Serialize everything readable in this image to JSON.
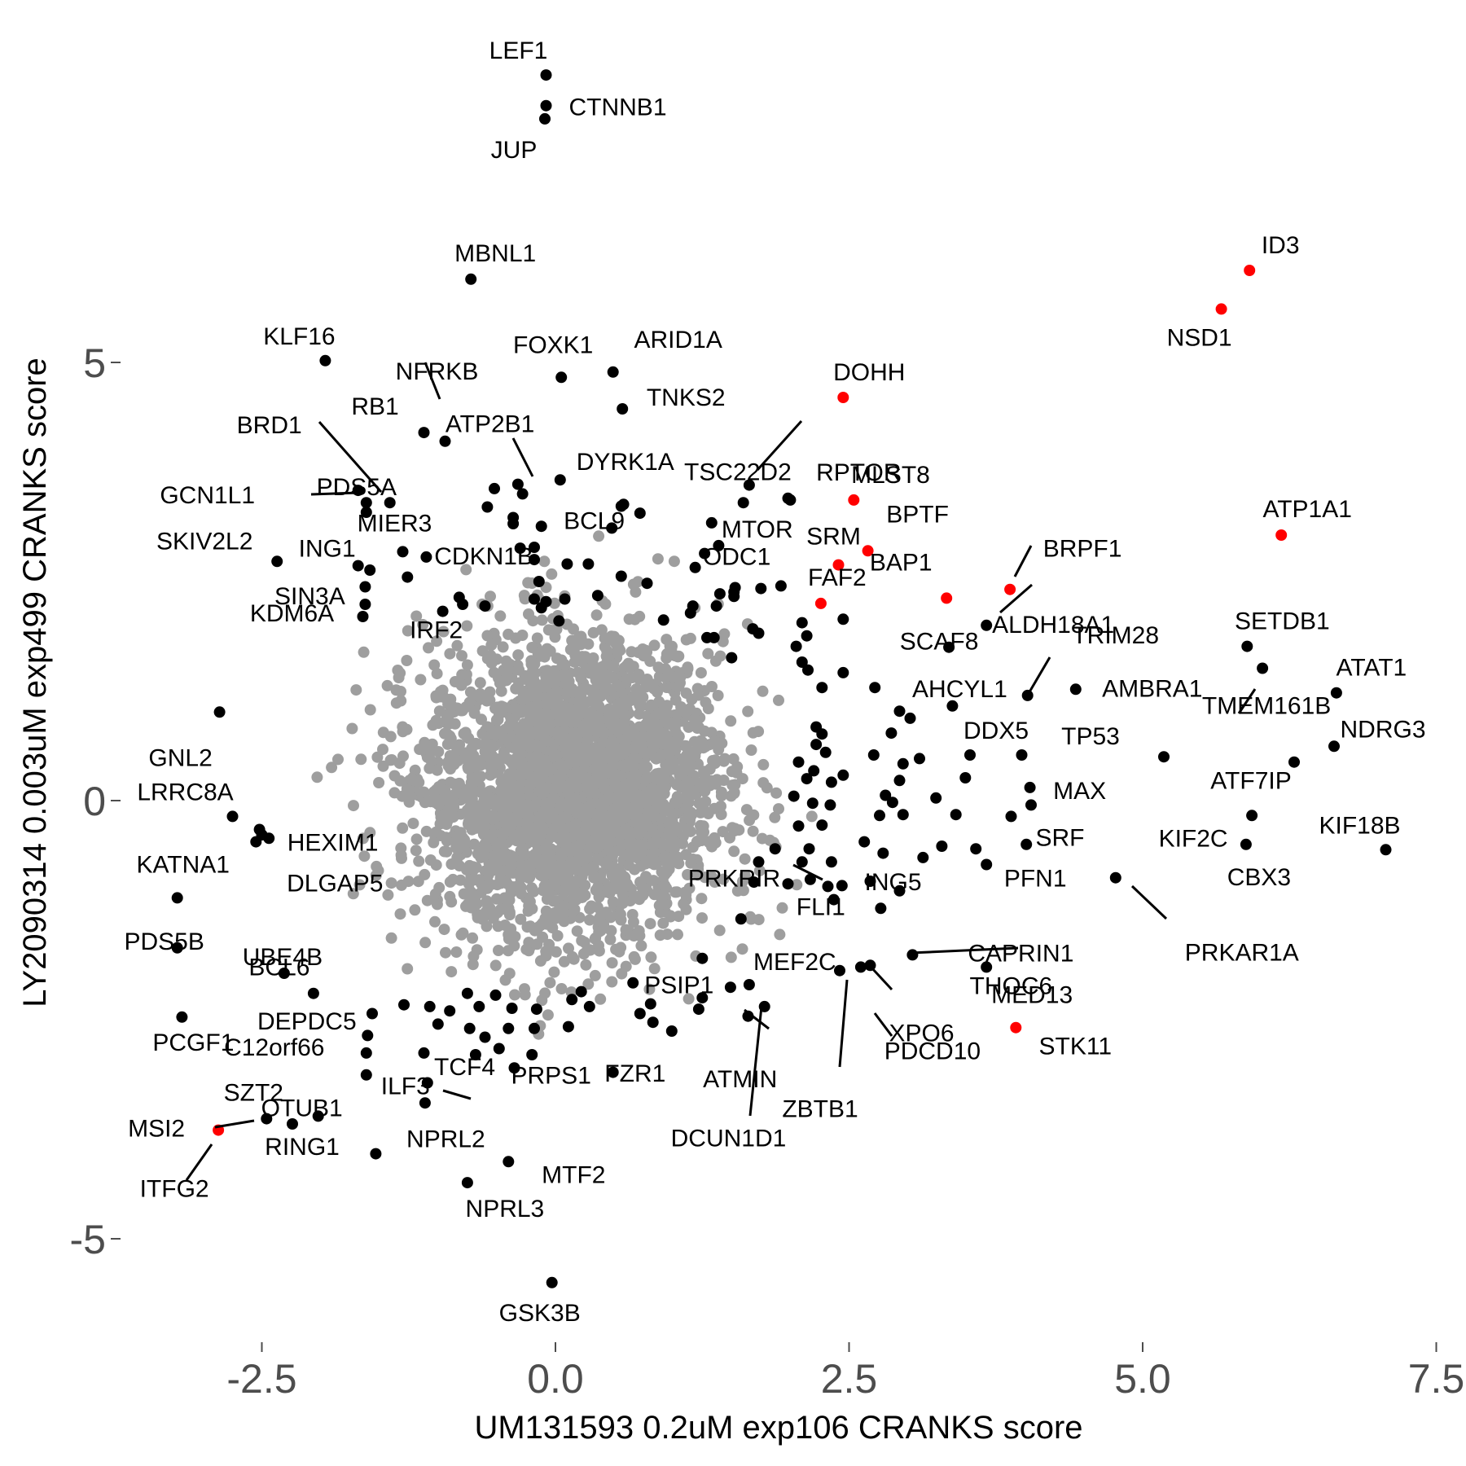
{
  "chart_data": {
    "type": "scatter",
    "title": "",
    "xlabel": "UM131593 0.2uM exp106 CRANKS score",
    "ylabel": "LY2090314 0.003uM exp499 CRANKS score",
    "xlim": [
      -3.7,
      7.5
    ],
    "ylim": [
      -6.0,
      9.2
    ],
    "x_ticks": [
      {
        "value": -2.5,
        "label": "-2.5"
      },
      {
        "value": 0.0,
        "label": "0.0"
      },
      {
        "value": 2.5,
        "label": "2.5"
      },
      {
        "value": 5.0,
        "label": "5.0"
      },
      {
        "value": 7.5,
        "label": "7.5"
      }
    ],
    "y_ticks": [
      {
        "value": 5,
        "label": "5"
      },
      {
        "value": 0,
        "label": "0"
      },
      {
        "value": -5,
        "label": "-5"
      }
    ],
    "grid": false,
    "legend": "none",
    "colors": {
      "background_points": "#9e9e9e",
      "highlight": "#000000",
      "selected": "#ff0000"
    },
    "background_cloud": {
      "description_of_marks": "dense cloud of grey points",
      "center": [
        0.15,
        0.15
      ],
      "sd": [
        0.6,
        0.8
      ],
      "count": 3000
    },
    "labeled_points": [
      {
        "name": "LEF1",
        "x": -0.08,
        "y": 8.28,
        "group": "black"
      },
      {
        "name": "CTNNB1",
        "x": -0.08,
        "y": 7.93,
        "group": "black"
      },
      {
        "name": "JUP",
        "x": -0.09,
        "y": 7.78,
        "group": "black"
      },
      {
        "name": "MBNL1",
        "x": -0.72,
        "y": 5.95,
        "group": "black"
      },
      {
        "name": "KLF16",
        "x": -1.96,
        "y": 5.02,
        "group": "black"
      },
      {
        "name": "FOXK1",
        "x": 0.05,
        "y": 4.83,
        "group": "black"
      },
      {
        "name": "ARID1A",
        "x": 0.49,
        "y": 4.89,
        "group": "black"
      },
      {
        "name": "TNKS2",
        "x": 0.57,
        "y": 4.47,
        "group": "black"
      },
      {
        "name": "NFRKB",
        "x": -0.94,
        "y": 4.1,
        "group": "black"
      },
      {
        "name": "RB1",
        "x": -1.12,
        "y": 4.2,
        "group": "black"
      },
      {
        "name": "BRD1",
        "x": -1.41,
        "y": 3.4,
        "group": "black"
      },
      {
        "name": "ATP2B1",
        "x": -0.28,
        "y": 3.5,
        "group": "black"
      },
      {
        "name": "DYRK1A",
        "x": 0.04,
        "y": 3.66,
        "group": "black"
      },
      {
        "name": "TSC22D2",
        "x": 1.65,
        "y": 3.6,
        "group": "black"
      },
      {
        "name": "MLST8",
        "x": 1.98,
        "y": 3.45,
        "group": "black"
      },
      {
        "name": "DOHH",
        "x": 2.45,
        "y": 4.6,
        "group": "red"
      },
      {
        "name": "RPTOR",
        "x": 2.54,
        "y": 3.43,
        "group": "red"
      },
      {
        "name": "PDS5A",
        "x": -1.61,
        "y": 3.29,
        "group": "black"
      },
      {
        "name": "GCN1L1",
        "x": -1.68,
        "y": 3.54,
        "group": "black"
      },
      {
        "name": "CDKN1B",
        "x": -0.36,
        "y": 3.16,
        "group": "black"
      },
      {
        "name": "BCL9",
        "x": 0.58,
        "y": 3.38,
        "group": "black"
      },
      {
        "name": "MTOR",
        "x": 1.33,
        "y": 3.17,
        "group": "black"
      },
      {
        "name": "SRM",
        "x": 2.41,
        "y": 2.69,
        "group": "red"
      },
      {
        "name": "BPTF",
        "x": 2.66,
        "y": 2.85,
        "group": "red"
      },
      {
        "name": "BRPF1",
        "x": 3.87,
        "y": 2.41,
        "group": "red"
      },
      {
        "name": "ID3",
        "x": 5.91,
        "y": 6.05,
        "group": "red"
      },
      {
        "name": "NSD1",
        "x": 5.67,
        "y": 5.61,
        "group": "red"
      },
      {
        "name": "ATP1A1",
        "x": 6.18,
        "y": 3.03,
        "group": "red"
      },
      {
        "name": "SKIV2L2",
        "x": -2.37,
        "y": 2.73,
        "group": "black"
      },
      {
        "name": "ING1",
        "x": -1.68,
        "y": 2.68,
        "group": "black"
      },
      {
        "name": "MIER3",
        "x": -1.3,
        "y": 2.84,
        "group": "black"
      },
      {
        "name": "ODC1",
        "x": 1.53,
        "y": 2.43,
        "group": "black"
      },
      {
        "name": "FAF2",
        "x": 2.26,
        "y": 2.25,
        "group": "red"
      },
      {
        "name": "BAP1",
        "x": 3.33,
        "y": 2.31,
        "group": "red"
      },
      {
        "name": "ALDH18A1",
        "x": 3.67,
        "y": 2.0,
        "group": "black"
      },
      {
        "name": "SIN3A",
        "x": -1.62,
        "y": 2.24,
        "group": "black"
      },
      {
        "name": "SCAF8",
        "x": 3.35,
        "y": 1.75,
        "group": "black"
      },
      {
        "name": "KDM6A",
        "x": -1.64,
        "y": 2.1,
        "group": "black"
      },
      {
        "name": "IRF2",
        "x": -0.96,
        "y": 2.16,
        "group": "black"
      },
      {
        "name": "TRIM28",
        "x": 4.02,
        "y": 1.2,
        "group": "black"
      },
      {
        "name": "SETDB1",
        "x": 5.89,
        "y": 1.76,
        "group": "black"
      },
      {
        "name": "AHCYL1",
        "x": 3.38,
        "y": 1.08,
        "group": "black"
      },
      {
        "name": "AMBRA1",
        "x": 4.43,
        "y": 1.27,
        "group": "black"
      },
      {
        "name": "ATAT1",
        "x": 6.65,
        "y": 1.23,
        "group": "black"
      },
      {
        "name": "TMEM161B",
        "x": 6.02,
        "y": 1.51,
        "group": "black"
      },
      {
        "name": "DDX5",
        "x": 3.53,
        "y": 0.52,
        "group": "black"
      },
      {
        "name": "TP53",
        "x": 5.18,
        "y": 0.5,
        "group": "black"
      },
      {
        "name": "NDRG3",
        "x": 6.63,
        "y": 0.62,
        "group": "black"
      },
      {
        "name": "GNL2",
        "x": -2.86,
        "y": 1.01,
        "group": "black"
      },
      {
        "name": "MAX",
        "x": 4.04,
        "y": 0.15,
        "group": "black"
      },
      {
        "name": "ATF7IP",
        "x": 6.29,
        "y": 0.44,
        "group": "black"
      },
      {
        "name": "LRRC8A",
        "x": -2.75,
        "y": -0.18,
        "group": "black"
      },
      {
        "name": "HEXIM1",
        "x": -2.52,
        "y": -0.33,
        "group": "black"
      },
      {
        "name": "SRF",
        "x": 3.88,
        "y": -0.18,
        "group": "black"
      },
      {
        "name": "KIF2C",
        "x": 5.93,
        "y": -0.17,
        "group": "black"
      },
      {
        "name": "KIF18B",
        "x": 7.07,
        "y": -0.56,
        "group": "black"
      },
      {
        "name": "CBX3",
        "x": 5.88,
        "y": -0.5,
        "group": "black"
      },
      {
        "name": "DLGAP5",
        "x": -2.55,
        "y": -0.47,
        "group": "black"
      },
      {
        "name": "PRKRIR",
        "x": 2.32,
        "y": -0.98,
        "group": "black"
      },
      {
        "name": "KATNA1",
        "x": -3.22,
        "y": -1.11,
        "group": "black"
      },
      {
        "name": "ING5",
        "x": 2.93,
        "y": -1.03,
        "group": "black"
      },
      {
        "name": "PFN1",
        "x": 3.67,
        "y": -0.73,
        "group": "black"
      },
      {
        "name": "PRKAR1A",
        "x": 4.77,
        "y": -0.88,
        "group": "black"
      },
      {
        "name": "FLI1",
        "x": 2.44,
        "y": -0.97,
        "group": "black"
      },
      {
        "name": "THOC6",
        "x": 2.77,
        "y": -1.23,
        "group": "black"
      },
      {
        "name": "PDS5B",
        "x": -3.22,
        "y": -1.68,
        "group": "black"
      },
      {
        "name": "CAPRIN1",
        "x": 3.04,
        "y": -1.76,
        "group": "black"
      },
      {
        "name": "MED13",
        "x": 3.67,
        "y": -1.9,
        "group": "black"
      },
      {
        "name": "UBE4B",
        "x": -2.31,
        "y": -1.97,
        "group": "black"
      },
      {
        "name": "PCGF1",
        "x": -3.18,
        "y": -2.47,
        "group": "black"
      },
      {
        "name": "PSIP1",
        "x": 0.81,
        "y": -2.32,
        "group": "black"
      },
      {
        "name": "MEF2C",
        "x": 1.65,
        "y": -2.1,
        "group": "black"
      },
      {
        "name": "XPO6",
        "x": 2.68,
        "y": -1.88,
        "group": "black"
      },
      {
        "name": "BCL6",
        "x": -2.06,
        "y": -2.2,
        "group": "black"
      },
      {
        "name": "STK11",
        "x": 3.92,
        "y": -2.59,
        "group": "red"
      },
      {
        "name": "PDCD10",
        "x": 2.6,
        "y": -1.9,
        "group": "black"
      },
      {
        "name": "ATMIN",
        "x": 1.78,
        "y": -2.35,
        "group": "black"
      },
      {
        "name": "C12orf66",
        "x": -1.61,
        "y": -2.88,
        "group": "black"
      },
      {
        "name": "TCF4",
        "x": -1.12,
        "y": -2.88,
        "group": "black"
      },
      {
        "name": "FZR1",
        "x": 0.99,
        "y": -2.63,
        "group": "black"
      },
      {
        "name": "ZBTB1",
        "x": 2.42,
        "y": -1.94,
        "group": "black"
      },
      {
        "name": "ILF3",
        "x": -1.09,
        "y": -3.22,
        "group": "black"
      },
      {
        "name": "PRPS1",
        "x": 0.49,
        "y": -3.1,
        "group": "black"
      },
      {
        "name": "SZT2",
        "x": -2.46,
        "y": -3.63,
        "group": "black"
      },
      {
        "name": "OTUB1",
        "x": -2.02,
        "y": -3.6,
        "group": "black"
      },
      {
        "name": "MSI2",
        "x": -2.87,
        "y": -3.76,
        "group": "red"
      },
      {
        "name": "RING1",
        "x": -2.24,
        "y": -3.69,
        "group": "black"
      },
      {
        "name": "NPRL2",
        "x": -1.53,
        "y": -4.03,
        "group": "black"
      },
      {
        "name": "MTF2",
        "x": -0.4,
        "y": -4.12,
        "group": "black"
      },
      {
        "name": "DCUN1D1",
        "x": 1.64,
        "y": -2.46,
        "group": "black"
      },
      {
        "name": "ITFG2",
        "x": -2.87,
        "y": -3.76,
        "group": "red"
      },
      {
        "name": "DEPDC5",
        "x": -1.61,
        "y": -3.13,
        "group": "black"
      },
      {
        "name": "NPRL3",
        "x": -0.75,
        "y": -4.36,
        "group": "black"
      },
      {
        "name": "GSK3B",
        "x": -0.03,
        "y": -5.5,
        "group": "black"
      }
    ],
    "unlabeled_points": [
      [
        -0.52,
        3.56
      ],
      [
        -0.32,
        3.61
      ],
      [
        0.56,
        3.36
      ],
      [
        0.72,
        3.28
      ],
      [
        -0.36,
        3.23
      ],
      [
        -0.12,
        3.13
      ],
      [
        0.48,
        3.11
      ],
      [
        1.6,
        3.4
      ],
      [
        2.0,
        3.43
      ],
      [
        1.39,
        2.91
      ],
      [
        1.27,
        2.82
      ],
      [
        1.19,
        2.66
      ],
      [
        -0.18,
        2.75
      ],
      [
        -0.14,
        2.5
      ],
      [
        0.1,
        2.7
      ],
      [
        0.28,
        2.7
      ],
      [
        0.56,
        2.56
      ],
      [
        0.78,
        2.48
      ],
      [
        1.4,
        2.36
      ],
      [
        1.52,
        2.38
      ],
      [
        1.75,
        2.42
      ],
      [
        1.92,
        2.45
      ],
      [
        -0.6,
        2.22
      ],
      [
        -0.18,
        2.3
      ],
      [
        -0.08,
        2.27
      ],
      [
        0.08,
        2.3
      ],
      [
        0.36,
        2.34
      ],
      [
        1.17,
        2.22
      ],
      [
        1.37,
        2.22
      ],
      [
        1.15,
        2.14
      ],
      [
        2.1,
        2.03
      ],
      [
        2.45,
        2.07
      ],
      [
        0.92,
        2.06
      ],
      [
        0.03,
        2.05
      ],
      [
        -0.12,
        2.2
      ],
      [
        1.35,
        1.86
      ],
      [
        1.5,
        1.63
      ],
      [
        1.68,
        1.96
      ],
      [
        2.05,
        1.76
      ],
      [
        2.1,
        1.58
      ],
      [
        2.14,
        1.88
      ],
      [
        2.15,
        1.49
      ],
      [
        2.45,
        1.46
      ],
      [
        2.27,
        1.29
      ],
      [
        2.72,
        1.29
      ],
      [
        2.22,
        0.84
      ],
      [
        2.22,
        0.64
      ],
      [
        2.27,
        0.76
      ],
      [
        2.3,
        0.55
      ],
      [
        2.07,
        0.44
      ],
      [
        2.2,
        0.34
      ],
      [
        2.14,
        0.25
      ],
      [
        2.35,
        0.21
      ],
      [
        2.03,
        0.05
      ],
      [
        2.19,
        -0.03
      ],
      [
        2.07,
        -0.29
      ],
      [
        2.27,
        -0.28
      ],
      [
        2.34,
        -0.05
      ],
      [
        2.45,
        0.29
      ],
      [
        2.71,
        0.52
      ],
      [
        2.86,
        0.77
      ],
      [
        2.93,
        1.02
      ],
      [
        3.02,
        0.94
      ],
      [
        2.96,
        0.42
      ],
      [
        2.93,
        0.23
      ],
      [
        2.81,
        0.06
      ],
      [
        2.87,
        -0.02
      ],
      [
        2.96,
        -0.16
      ],
      [
        2.76,
        -0.17
      ],
      [
        2.79,
        -0.6
      ],
      [
        2.63,
        -0.47
      ],
      [
        3.1,
        0.48
      ],
      [
        3.24,
        0.03
      ],
      [
        3.49,
        0.26
      ],
      [
        3.41,
        -0.16
      ],
      [
        3.29,
        -0.52
      ],
      [
        3.13,
        -0.65
      ],
      [
        3.58,
        -0.55
      ],
      [
        3.97,
        0.52
      ],
      [
        4.05,
        -0.05
      ],
      [
        4.01,
        -0.5
      ],
      [
        2.35,
        -0.7
      ],
      [
        2.1,
        -0.7
      ],
      [
        2.16,
        -0.55
      ],
      [
        2.68,
        -0.92
      ],
      [
        2.37,
        -1.13
      ],
      [
        2.17,
        -0.9
      ],
      [
        1.98,
        -0.95
      ],
      [
        1.87,
        -0.55
      ],
      [
        1.73,
        -0.7
      ],
      [
        1.69,
        -0.93
      ],
      [
        1.58,
        -1.35
      ],
      [
        1.25,
        -1.8
      ],
      [
        1.25,
        -2.25
      ],
      [
        1.49,
        -2.13
      ],
      [
        1.22,
        -2.38
      ],
      [
        0.83,
        -2.53
      ],
      [
        0.72,
        -2.43
      ],
      [
        0.66,
        -2.08
      ],
      [
        0.22,
        -2.18
      ],
      [
        0.29,
        -2.35
      ],
      [
        0.14,
        -2.27
      ],
      [
        0.11,
        -2.58
      ],
      [
        -0.16,
        -2.38
      ],
      [
        -0.18,
        -2.6
      ],
      [
        -0.37,
        -2.37
      ],
      [
        -0.51,
        -2.22
      ],
      [
        -0.65,
        -2.35
      ],
      [
        -0.75,
        -2.2
      ],
      [
        -0.9,
        -2.4
      ],
      [
        -1.0,
        -2.55
      ],
      [
        -1.07,
        -2.35
      ],
      [
        -1.29,
        -2.33
      ],
      [
        -0.73,
        -2.6
      ],
      [
        -0.6,
        -2.7
      ],
      [
        -0.4,
        -2.6
      ],
      [
        -0.2,
        -2.9
      ],
      [
        -0.35,
        -3.05
      ],
      [
        -0.48,
        -2.83
      ],
      [
        -0.68,
        -2.9
      ],
      [
        -1.11,
        -3.45
      ],
      [
        -1.56,
        -2.43
      ],
      [
        -1.6,
        -2.68
      ],
      [
        -2.44,
        -0.43
      ],
      [
        -2.5,
        -0.39
      ],
      [
        -1.58,
        2.63
      ],
      [
        -1.62,
        2.44
      ],
      [
        -1.26,
        2.55
      ],
      [
        -1.61,
        3.4
      ],
      [
        -1.1,
        2.78
      ],
      [
        -0.79,
        2.24
      ],
      [
        -0.82,
        2.32
      ],
      [
        -0.58,
        3.35
      ],
      [
        -0.3,
        2.88
      ],
      [
        -0.18,
        2.89
      ],
      [
        1.29,
        1.86
      ],
      [
        1.52,
        2.33
      ],
      [
        1.73,
        1.91
      ]
    ]
  }
}
